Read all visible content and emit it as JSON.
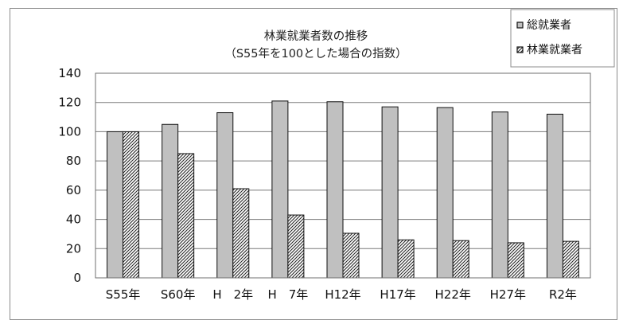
{
  "chart_data": {
    "type": "bar",
    "title": "林業就業者数の推移",
    "subtitle": "（S55年を100とした場合の指数）",
    "categories": [
      "S55年",
      "S60年",
      "H　2年",
      "H　7年",
      "H12年",
      "H17年",
      "H22年",
      "H27年",
      "R2年"
    ],
    "series": [
      {
        "name": "総就業者",
        "values": [
          100,
          105,
          113,
          121,
          120.5,
          117,
          116.5,
          113.5,
          112
        ]
      },
      {
        "name": "林業就業者",
        "values": [
          100,
          85,
          61,
          43,
          30.5,
          26,
          25.5,
          24,
          25
        ]
      }
    ],
    "ylim": [
      0,
      140
    ],
    "y_ticks": [
      "0",
      "20",
      "40",
      "60",
      "80",
      "100",
      "120",
      "140"
    ],
    "grid": true,
    "legend": "top-right",
    "colors": {
      "series1": "#c0c0c0",
      "series2_pattern_dark": "#222222",
      "series2_pattern_light": "#ffffff"
    }
  }
}
